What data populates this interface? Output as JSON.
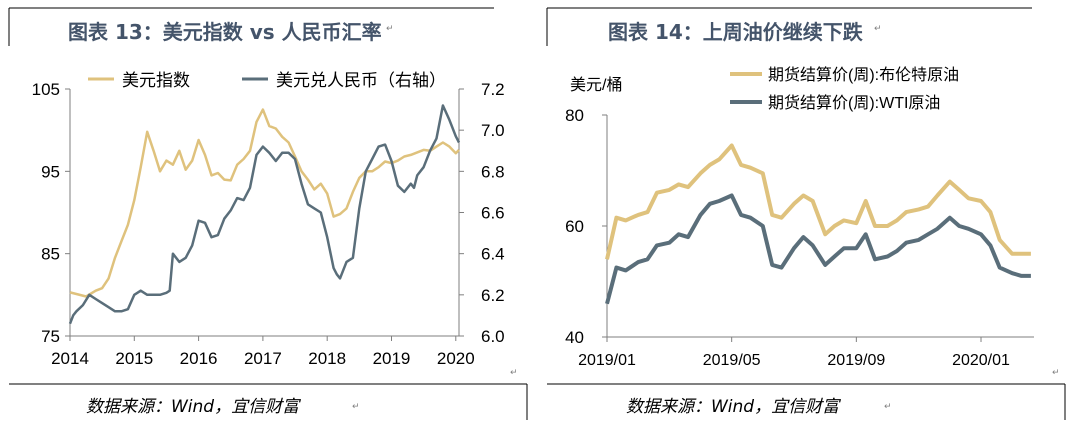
{
  "left_panel": {
    "title": "图表 13：美元指数 vs 人民币汇率",
    "source": "数据来源：Wind，宜信财富",
    "chart_data": {
      "type": "line",
      "x_ticks": [
        "2014",
        "2015",
        "2016",
        "2017",
        "2018",
        "2019",
        "2020"
      ],
      "x_range": [
        2014.0,
        2020.05
      ],
      "y_left": {
        "range": [
          75,
          105
        ],
        "ticks": [
          "105",
          "95",
          "85",
          "75"
        ],
        "tick_values": [
          105,
          95,
          85,
          75
        ]
      },
      "y_right": {
        "range": [
          6.0,
          7.2
        ],
        "ticks": [
          "7.2",
          "7.0",
          "6.8",
          "6.6",
          "6.4",
          "6.2",
          "6.0"
        ],
        "tick_values": [
          7.2,
          7.0,
          6.8,
          6.6,
          6.4,
          6.2,
          6.0
        ]
      },
      "grid": false,
      "legend_position": "top",
      "colors": {
        "dxy": "#dfc27d",
        "cny": "#5a6e7a"
      },
      "series": [
        {
          "name": "美元指数",
          "axis": "left",
          "x": [
            2014.0,
            2014.1,
            2014.25,
            2014.4,
            2014.5,
            2014.6,
            2014.7,
            2014.8,
            2014.9,
            2015.0,
            2015.1,
            2015.2,
            2015.3,
            2015.4,
            2015.5,
            2015.6,
            2015.7,
            2015.8,
            2015.9,
            2016.0,
            2016.1,
            2016.2,
            2016.3,
            2016.4,
            2016.5,
            2016.6,
            2016.7,
            2016.8,
            2016.9,
            2017.0,
            2017.1,
            2017.2,
            2017.3,
            2017.4,
            2017.5,
            2017.6,
            2017.7,
            2017.8,
            2017.9,
            2018.0,
            2018.1,
            2018.2,
            2018.3,
            2018.4,
            2018.5,
            2018.6,
            2018.7,
            2018.8,
            2018.9,
            2019.0,
            2019.1,
            2019.2,
            2019.3,
            2019.4,
            2019.5,
            2019.6,
            2019.7,
            2019.8,
            2019.9,
            2020.0,
            2020.05
          ],
          "values": [
            80.3,
            80.1,
            79.8,
            80.5,
            80.8,
            82.0,
            84.5,
            86.5,
            88.5,
            91.5,
            95.5,
            99.8,
            97.5,
            95.0,
            96.3,
            95.8,
            97.5,
            95.2,
            96.3,
            98.8,
            97.0,
            94.5,
            94.8,
            94.0,
            93.9,
            95.8,
            96.5,
            97.5,
            101.0,
            102.5,
            100.5,
            100.2,
            99.2,
            98.5,
            96.8,
            95.0,
            94.0,
            92.8,
            93.5,
            92.3,
            89.5,
            89.8,
            90.5,
            92.5,
            94.2,
            95.0,
            95.0,
            95.5,
            96.2,
            96.0,
            96.3,
            96.8,
            97.0,
            97.3,
            97.6,
            97.5,
            98.0,
            98.5,
            98.0,
            97.2,
            97.6
          ]
        },
        {
          "name": "美元兑人民币（右轴）",
          "axis": "right",
          "x": [
            2014.0,
            2014.05,
            2014.1,
            2014.2,
            2014.3,
            2014.4,
            2014.5,
            2014.6,
            2014.7,
            2014.8,
            2014.9,
            2015.0,
            2015.1,
            2015.2,
            2015.3,
            2015.4,
            2015.5,
            2015.55,
            2015.6,
            2015.7,
            2015.8,
            2015.9,
            2016.0,
            2016.1,
            2016.2,
            2016.3,
            2016.4,
            2016.5,
            2016.6,
            2016.7,
            2016.8,
            2016.9,
            2017.0,
            2017.1,
            2017.2,
            2017.3,
            2017.4,
            2017.5,
            2017.6,
            2017.7,
            2017.8,
            2017.9,
            2018.0,
            2018.1,
            2018.15,
            2018.2,
            2018.3,
            2018.4,
            2018.5,
            2018.6,
            2018.7,
            2018.8,
            2018.9,
            2019.0,
            2019.1,
            2019.2,
            2019.3,
            2019.35,
            2019.4,
            2019.5,
            2019.6,
            2019.7,
            2019.8,
            2019.9,
            2020.0,
            2020.05
          ],
          "values": [
            6.06,
            6.1,
            6.12,
            6.15,
            6.2,
            6.18,
            6.16,
            6.14,
            6.12,
            6.12,
            6.13,
            6.2,
            6.22,
            6.2,
            6.2,
            6.2,
            6.21,
            6.22,
            6.4,
            6.36,
            6.38,
            6.44,
            6.56,
            6.55,
            6.48,
            6.49,
            6.57,
            6.61,
            6.67,
            6.66,
            6.72,
            6.88,
            6.92,
            6.89,
            6.85,
            6.89,
            6.89,
            6.86,
            6.74,
            6.64,
            6.62,
            6.6,
            6.48,
            6.33,
            6.3,
            6.28,
            6.36,
            6.38,
            6.62,
            6.8,
            6.86,
            6.92,
            6.93,
            6.85,
            6.73,
            6.7,
            6.74,
            6.72,
            6.78,
            6.82,
            6.9,
            6.96,
            7.12,
            7.05,
            6.97,
            6.94
          ]
        }
      ]
    }
  },
  "right_panel": {
    "title": "图表 14：上周油价继续下跌",
    "source": "数据来源：Wind，宜信财富",
    "chart_data": {
      "type": "line",
      "ylabel": "美元/桶",
      "y_range": [
        40,
        80
      ],
      "y_ticks": [
        "80",
        "60",
        "40"
      ],
      "y_tick_values": [
        80,
        60,
        40
      ],
      "x_ticks": [
        "2019/01",
        "2019/05",
        "2019/09",
        "2020/01"
      ],
      "x_tick_positions": [
        0,
        4,
        8,
        12
      ],
      "x_range": [
        0,
        13.7
      ],
      "grid": false,
      "legend_position": "top",
      "colors": {
        "brent": "#dfc27d",
        "wti": "#5a6e7a"
      },
      "series": [
        {
          "name": "期货结算价(周):布伦特原油",
          "x": [
            0,
            0.3,
            0.6,
            1,
            1.3,
            1.6,
            2,
            2.3,
            2.6,
            3,
            3.3,
            3.6,
            4,
            4.3,
            4.6,
            5,
            5.3,
            5.6,
            6,
            6.3,
            6.6,
            7,
            7.3,
            7.6,
            8,
            8.3,
            8.6,
            9,
            9.3,
            9.6,
            10,
            10.3,
            10.6,
            11,
            11.3,
            11.6,
            12,
            12.3,
            12.6,
            13,
            13.3,
            13.6
          ],
          "values": [
            54.0,
            61.5,
            61.0,
            62.0,
            62.5,
            66.0,
            66.5,
            67.5,
            67.0,
            69.5,
            71.0,
            72.0,
            74.5,
            71.0,
            70.5,
            69.5,
            62.0,
            61.5,
            64.0,
            65.5,
            64.5,
            58.5,
            60.0,
            61.0,
            60.5,
            64.5,
            60.0,
            60.0,
            61.0,
            62.5,
            63.0,
            63.5,
            65.5,
            68.0,
            66.5,
            65.0,
            64.5,
            62.5,
            57.5,
            55.0,
            55.0,
            55.0
          ]
        },
        {
          "name": "期货结算价(周):WTI原油",
          "x": [
            0,
            0.3,
            0.6,
            1,
            1.3,
            1.6,
            2,
            2.3,
            2.6,
            3,
            3.3,
            3.6,
            4,
            4.3,
            4.6,
            5,
            5.3,
            5.6,
            6,
            6.3,
            6.6,
            7,
            7.3,
            7.6,
            8,
            8.3,
            8.6,
            9,
            9.3,
            9.6,
            10,
            10.3,
            10.6,
            11,
            11.3,
            11.6,
            12,
            12.3,
            12.6,
            13,
            13.3,
            13.6
          ],
          "values": [
            46.0,
            52.5,
            52.0,
            53.5,
            54.0,
            56.5,
            57.0,
            58.5,
            58.0,
            62.0,
            64.0,
            64.5,
            65.5,
            62.0,
            61.5,
            60.0,
            53.0,
            52.5,
            56.0,
            58.0,
            56.5,
            53.0,
            54.5,
            56.0,
            56.0,
            58.5,
            54.0,
            54.5,
            55.5,
            57.0,
            57.5,
            58.5,
            59.5,
            61.5,
            60.0,
            59.5,
            58.5,
            56.5,
            52.5,
            51.5,
            51.0,
            51.0
          ]
        }
      ]
    }
  }
}
